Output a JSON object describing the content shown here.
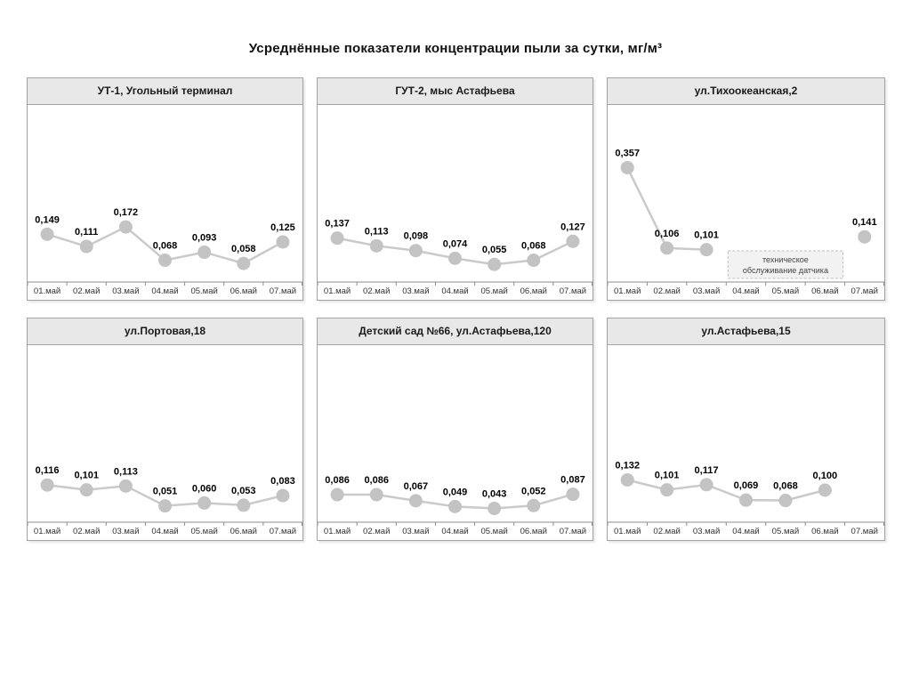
{
  "page_title": "Усреднённые показатели концентрации пыли за сутки, мг/м³",
  "style": {
    "marker_color": "#c3c3c3",
    "line_color": "#cacaca",
    "axis_color": "#8c8c8c",
    "header_bg": "#e8e8e8",
    "panel_border": "#a3a3a3",
    "annotation_bg": "#f2f2f2",
    "annotation_border": "#bfbfbf"
  },
  "chart_data": [
    {
      "type": "line",
      "title": "УТ-1, Угольный терминал",
      "categories": [
        "01.май",
        "02.май",
        "03.май",
        "04.май",
        "05.май",
        "06.май",
        "07.май"
      ],
      "values": [
        0.149,
        0.111,
        0.172,
        0.068,
        0.093,
        0.058,
        0.125
      ],
      "ylim": [
        0,
        0.55
      ],
      "xlabel": "",
      "ylabel": ""
    },
    {
      "type": "line",
      "title": "ГУТ-2, мыс Астафьева",
      "categories": [
        "01.май",
        "02.май",
        "03.май",
        "04.май",
        "05.май",
        "06.май",
        "07.май"
      ],
      "values": [
        0.137,
        0.113,
        0.098,
        0.074,
        0.055,
        0.068,
        0.127
      ],
      "ylim": [
        0,
        0.55
      ],
      "xlabel": "",
      "ylabel": ""
    },
    {
      "type": "line",
      "title": "ул.Тихоокеанская,2",
      "categories": [
        "01.май",
        "02.май",
        "03.май",
        "04.май",
        "05.май",
        "06.май",
        "07.май"
      ],
      "values": [
        0.357,
        0.106,
        0.101,
        null,
        null,
        null,
        0.141
      ],
      "ylim": [
        0,
        0.55
      ],
      "xlabel": "",
      "ylabel": "",
      "annotation": {
        "text_lines": [
          "техническое",
          "обслуживание датчика"
        ],
        "span": [
          3,
          5
        ]
      }
    },
    {
      "type": "line",
      "title": "ул.Портовая,18",
      "categories": [
        "01.май",
        "02.май",
        "03.май",
        "04.май",
        "05.май",
        "06.май",
        "07.май"
      ],
      "values": [
        0.116,
        0.101,
        0.113,
        0.051,
        0.06,
        0.053,
        0.083
      ],
      "ylim": [
        0,
        0.55
      ],
      "xlabel": "",
      "ylabel": ""
    },
    {
      "type": "line",
      "title": "Детский сад №66, ул.Астафьева,120",
      "categories": [
        "01.май",
        "02.май",
        "03.май",
        "04.май",
        "05.май",
        "06.май",
        "07.май"
      ],
      "values": [
        0.086,
        0.086,
        0.067,
        0.049,
        0.043,
        0.052,
        0.087
      ],
      "ylim": [
        0,
        0.55
      ],
      "xlabel": "",
      "ylabel": ""
    },
    {
      "type": "line",
      "title": "ул.Астафьева,15",
      "categories": [
        "01.май",
        "02.май",
        "03.май",
        "04.май",
        "05.май",
        "06.май",
        "07.май"
      ],
      "values": [
        0.132,
        0.101,
        0.117,
        0.069,
        0.068,
        0.1,
        null
      ],
      "ylim": [
        0,
        0.55
      ],
      "xlabel": "",
      "ylabel": ""
    }
  ]
}
